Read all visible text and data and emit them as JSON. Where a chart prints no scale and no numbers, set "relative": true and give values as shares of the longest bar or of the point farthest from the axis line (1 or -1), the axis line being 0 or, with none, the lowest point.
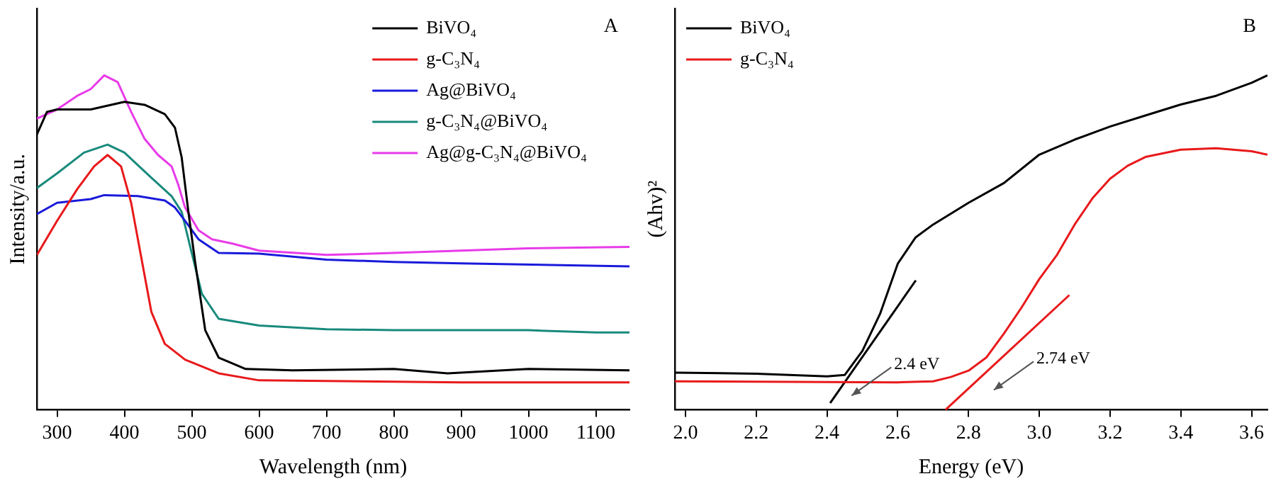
{
  "chart_data": [
    {
      "type": "line",
      "xlabel": "Wavelength (nm)",
      "ylabel": "Intensity/a.u.",
      "relative": true,
      "tick_labels": "x",
      "legend": "top right",
      "grid": false,
      "marker": "none",
      "xlim": [
        270,
        1150
      ],
      "xticks": [
        300,
        400,
        500,
        600,
        700,
        800,
        900,
        1000,
        1100
      ],
      "annotations": [
        "A"
      ],
      "series": [
        {
          "name": "BiVO₄",
          "color": "#000000",
          "x": [
            270,
            285,
            300,
            350,
            400,
            430,
            460,
            475,
            485,
            495,
            505,
            520,
            540,
            580,
            650,
            800,
            880,
            1000,
            1150
          ],
          "values": [
            0.823,
            0.891,
            0.898,
            0.898,
            0.921,
            0.912,
            0.884,
            0.844,
            0.755,
            0.592,
            0.442,
            0.238,
            0.156,
            0.122,
            0.118,
            0.122,
            0.109,
            0.122,
            0.118
          ]
        },
        {
          "name": "g-C₃N₄",
          "color": "#e8191b",
          "x": [
            270,
            300,
            330,
            355,
            375,
            395,
            410,
            425,
            440,
            460,
            490,
            540,
            600,
            700,
            900,
            1150
          ],
          "values": [
            0.463,
            0.565,
            0.66,
            0.728,
            0.762,
            0.728,
            0.619,
            0.456,
            0.293,
            0.197,
            0.15,
            0.109,
            0.088,
            0.086,
            0.082,
            0.082
          ]
        },
        {
          "name": "Ag@BiVO₄",
          "color": "#1a1adb",
          "x": [
            270,
            300,
            350,
            370,
            420,
            460,
            475,
            490,
            510,
            540,
            600,
            700,
            800,
            900,
            1150
          ],
          "values": [
            0.585,
            0.619,
            0.63,
            0.642,
            0.639,
            0.626,
            0.605,
            0.565,
            0.51,
            0.469,
            0.467,
            0.449,
            0.442,
            0.438,
            0.429
          ]
        },
        {
          "name": "g-C₃N₄@BiVO₄",
          "color": "#188a7c",
          "x": [
            270,
            300,
            340,
            375,
            400,
            440,
            470,
            485,
            500,
            515,
            540,
            600,
            700,
            800,
            1000,
            1100,
            1150
          ],
          "values": [
            0.663,
            0.707,
            0.769,
            0.793,
            0.769,
            0.694,
            0.639,
            0.592,
            0.469,
            0.347,
            0.272,
            0.252,
            0.241,
            0.238,
            0.238,
            0.231,
            0.231
          ]
        },
        {
          "name": "Ag@g-C₃N₄@BiVO₄",
          "color": "#e83be8",
          "x": [
            270,
            300,
            330,
            350,
            370,
            390,
            410,
            430,
            450,
            470,
            480,
            490,
            510,
            530,
            560,
            600,
            700,
            800,
            900,
            1000,
            1150
          ],
          "values": [
            0.871,
            0.898,
            0.939,
            0.959,
            1,
            0.98,
            0.891,
            0.81,
            0.762,
            0.728,
            0.673,
            0.605,
            0.537,
            0.51,
            0.497,
            0.476,
            0.463,
            0.469,
            0.476,
            0.483,
            0.487
          ]
        }
      ]
    },
    {
      "type": "line",
      "xlabel": "Energy (eV)",
      "ylabel": "(Ahv)²",
      "relative": true,
      "tick_labels": "x",
      "legend": "top left",
      "grid": false,
      "marker": "none",
      "xlim": [
        1.97,
        3.645
      ],
      "xticks": [
        {
          "value": 2,
          "label": "2.0"
        },
        2.2,
        2.4,
        2.6,
        2.8,
        {
          "value": 3,
          "label": "3.0"
        },
        3.2,
        3.4,
        3.6
      ],
      "annotations": [
        "B",
        "2.4 eV",
        "2.74 eV"
      ],
      "series": [
        {
          "name": "BiVO₄",
          "color": "#000000",
          "x": [
            1.97,
            2.2,
            2.4,
            2.45,
            2.5,
            2.55,
            2.6,
            2.65,
            2.7,
            2.8,
            2.9,
            3,
            3.1,
            3.2,
            3.3,
            3.4,
            3.5,
            3.6,
            3.645
          ],
          "values": [
            0.111,
            0.108,
            0.1,
            0.104,
            0.176,
            0.287,
            0.437,
            0.515,
            0.554,
            0.619,
            0.678,
            0.763,
            0.808,
            0.847,
            0.88,
            0.913,
            0.939,
            0.978,
            1
          ]
        },
        {
          "name": "g-C₃N₄",
          "color": "#e8191b",
          "x": [
            1.97,
            2.6,
            2.7,
            2.75,
            2.8,
            2.85,
            2.9,
            2.95,
            3,
            3.05,
            3.1,
            3.15,
            3.2,
            3.25,
            3.3,
            3.4,
            3.5,
            3.6,
            3.645
          ],
          "values": [
            0.085,
            0.082,
            0.085,
            0.098,
            0.117,
            0.156,
            0.228,
            0.306,
            0.391,
            0.463,
            0.554,
            0.632,
            0.691,
            0.73,
            0.756,
            0.778,
            0.782,
            0.773,
            0.763
          ]
        },
        {
          "color": "#000000",
          "x": [
            2.409,
            2.651
          ],
          "values": [
            0.02,
            0.387
          ]
        },
        {
          "color": "#e8191b",
          "x": [
            2.735,
            3.085
          ],
          "values": [
            0,
            0.343
          ]
        }
      ]
    }
  ]
}
